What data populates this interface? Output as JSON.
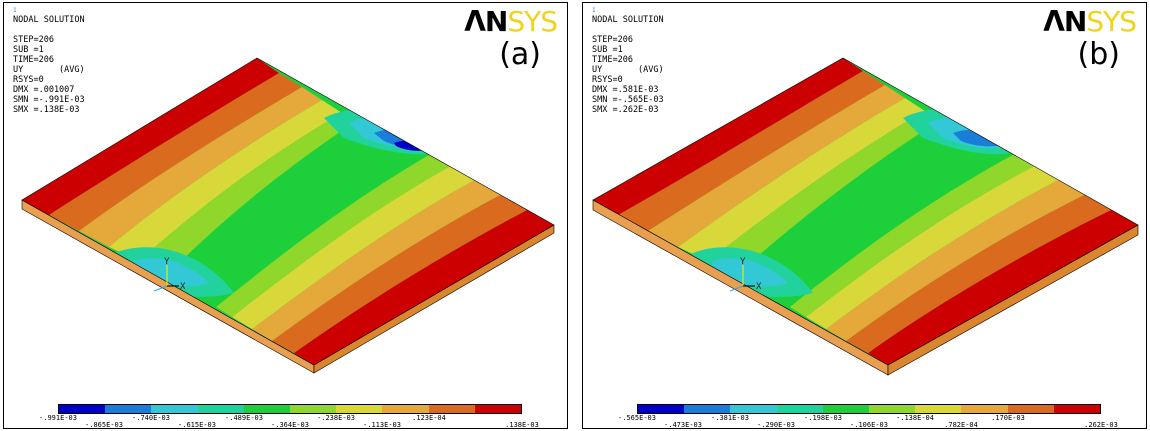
{
  "colors": {
    "legend": [
      "#0000c8",
      "#1a7dd9",
      "#33c8d6",
      "#22d29c",
      "#1ecf3c",
      "#8fd72a",
      "#d8d83a",
      "#e5a83a",
      "#d96a1e",
      "#cc0000"
    ],
    "plate_side": "#e8a050",
    "plate_edge": "#000000"
  },
  "panels": [
    {
      "id": "a",
      "label": "(a)",
      "logo_main": "ΛN",
      "logo_accent": "SYS",
      "info_number": "1",
      "info": [
        "NODAL SOLUTION",
        "",
        "STEP=206",
        "SUB =1",
        "TIME=206",
        "UY       (AVG)",
        "RSYS=0",
        "DMX =.001007",
        "SMN =-.991E-03",
        "SMX =.138E-03"
      ],
      "legend_top": [
        "-.991E-03",
        "-.740E-03",
        "-.489E-03",
        "-.238E-03",
        ".123E-04"
      ],
      "legend_bottom": [
        "-.865E-03",
        "-.615E-03",
        "-.364E-03",
        "-.113E-03",
        ".138E-03"
      ],
      "axis_y": "Y",
      "axis_x": "X"
    },
    {
      "id": "b",
      "label": "(b)",
      "logo_main": "ΛN",
      "logo_accent": "SYS",
      "info_number": "1",
      "info": [
        "NODAL SOLUTION",
        "",
        "STEP=206",
        "SUB =1",
        "TIME=206",
        "UY       (AVG)",
        "RSYS=0",
        "DMX =.581E-03",
        "SMN =-.565E-03",
        "SMX =.262E-03"
      ],
      "legend_top": [
        "-.565E-03",
        "-.381E-03",
        "-.198E-03",
        "-.138E-04",
        ".170E-03"
      ],
      "legend_bottom": [
        "-.473E-03",
        "-.290E-03",
        "-.106E-03",
        ".782E-04",
        ".262E-03"
      ],
      "axis_y": "Y",
      "axis_x": "X"
    }
  ]
}
